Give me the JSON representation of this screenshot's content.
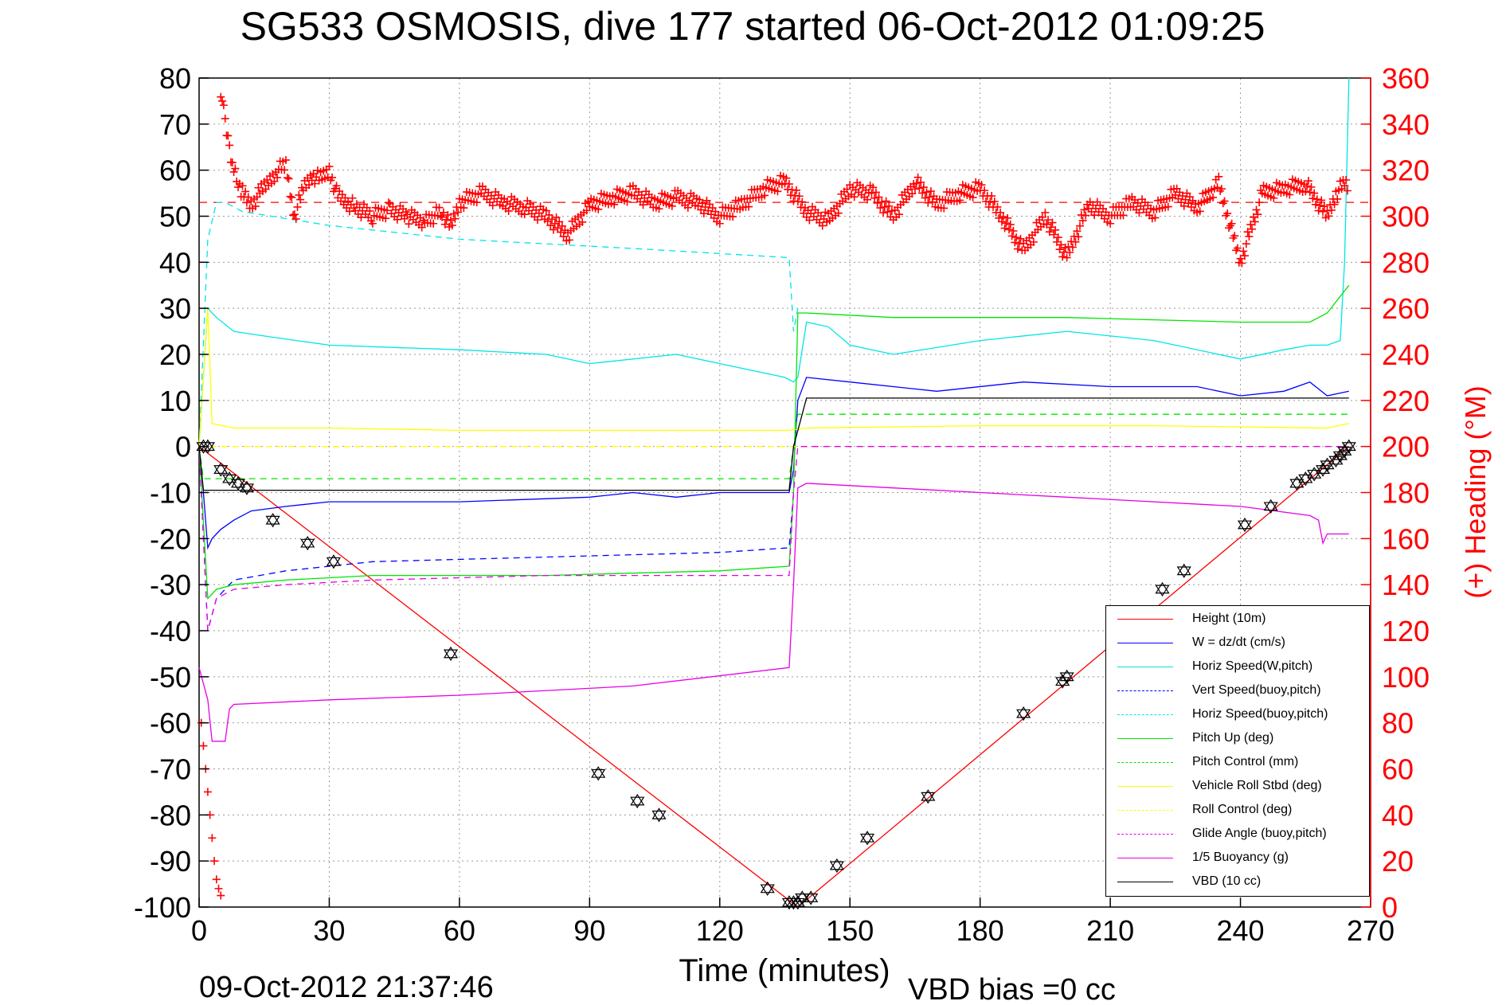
{
  "chart_data": {
    "type": "line",
    "title": "SG533 OSMOSIS, dive 177 started 06-Oct-2012 01:09:25",
    "xlabel": "Time (minutes)",
    "ylabel_right": "(+) Heading (°M)",
    "footer_left": "09-Oct-2012 21:37:46",
    "footer_right": "VBD bias =0 cc",
    "xlim": [
      0,
      270
    ],
    "ylim": [
      -100,
      80
    ],
    "ylim_right": [
      0,
      360
    ],
    "xticks": [
      0,
      30,
      60,
      90,
      120,
      150,
      180,
      210,
      240,
      270
    ],
    "yticks": [
      80,
      70,
      60,
      50,
      40,
      30,
      20,
      10,
      0,
      -10,
      -20,
      -30,
      -40,
      -50,
      -60,
      -70,
      -80,
      -90,
      -100
    ],
    "yticks_right": [
      360,
      340,
      320,
      300,
      280,
      260,
      240,
      220,
      200,
      180,
      160,
      140,
      120,
      100,
      80,
      60,
      40,
      20,
      0
    ],
    "grid": true,
    "legend_position": "bottom-right",
    "heading_mean": 306,
    "series": [
      {
        "name": "Height (10m)",
        "color": "#ff0000",
        "style": "solid",
        "axis": "left",
        "x": [
          0,
          138,
          265
        ],
        "y": [
          0,
          -100,
          0
        ]
      },
      {
        "name": "W = dz/dt (cm/s)",
        "color": "#0000ff",
        "style": "solid",
        "axis": "left",
        "x": [
          0,
          1,
          2,
          3,
          5,
          8,
          12,
          20,
          30,
          60,
          90,
          100,
          110,
          120,
          130,
          136,
          137,
          138,
          140,
          150,
          170,
          190,
          210,
          230,
          240,
          250,
          256,
          260,
          265
        ],
        "y": [
          0,
          -10,
          -22,
          -20,
          -18,
          -16,
          -14,
          -13,
          -12,
          -12,
          -11,
          -10,
          -11,
          -10,
          -10,
          -10,
          -5,
          10,
          15,
          14,
          12,
          14,
          13,
          13,
          11,
          12,
          14,
          11,
          12
        ]
      },
      {
        "name": "Horiz Speed(W,pitch)",
        "color": "#00e5e5",
        "style": "solid",
        "axis": "left",
        "x": [
          0,
          2,
          4,
          8,
          15,
          30,
          60,
          80,
          90,
          110,
          120,
          130,
          135,
          137,
          138,
          140,
          145,
          150,
          160,
          180,
          200,
          220,
          240,
          250,
          256,
          260,
          263,
          264,
          265
        ],
        "y": [
          0,
          30,
          28,
          25,
          24,
          22,
          21,
          20,
          18,
          20,
          18,
          16,
          15,
          14,
          15,
          27,
          26,
          22,
          20,
          23,
          25,
          23,
          19,
          21,
          22,
          22,
          23,
          40,
          80
        ]
      },
      {
        "name": "Vert Speed(buoy,pitch)",
        "color": "#0000ff",
        "style": "dashed",
        "axis": "left",
        "x": [
          0,
          2,
          4,
          8,
          20,
          40,
          80,
          120,
          136,
          137
        ],
        "y": [
          0,
          -40,
          -33,
          -29,
          -27,
          -25,
          -24,
          -23,
          -22,
          -10
        ]
      },
      {
        "name": "Horiz Speed(buoy,pitch)",
        "color": "#00e5e5",
        "style": "dashed",
        "axis": "left",
        "x": [
          0,
          2,
          4,
          6,
          10,
          30,
          60,
          100,
          136,
          137,
          138
        ],
        "y": [
          0,
          45,
          53,
          53,
          51,
          48,
          45,
          43,
          41,
          25,
          30
        ]
      },
      {
        "name": "Pitch Up (deg)",
        "color": "#00e600",
        "style": "solid",
        "axis": "left",
        "x": [
          0,
          2,
          4,
          8,
          20,
          40,
          80,
          120,
          136,
          137,
          138,
          140,
          160,
          200,
          240,
          256,
          260,
          265
        ],
        "y": [
          0,
          -33,
          -31,
          -30,
          -29,
          -28,
          -28,
          -27,
          -26,
          -10,
          29,
          29,
          28,
          28,
          27,
          27,
          29,
          35
        ]
      },
      {
        "name": "Pitch Control (mm)",
        "color": "#00e600",
        "style": "dashed",
        "axis": "left",
        "x": [
          0,
          1,
          2,
          136,
          137,
          138,
          140,
          265
        ],
        "y": [
          0,
          -7,
          -7,
          -7,
          0,
          7,
          7,
          7
        ]
      },
      {
        "name": "Vehicle Roll Stbd (deg)",
        "color": "#ffff00",
        "style": "solid",
        "axis": "left",
        "x": [
          0,
          2,
          3,
          8,
          30,
          60,
          100,
          136,
          140,
          180,
          220,
          260,
          265
        ],
        "y": [
          0,
          30,
          5,
          4,
          4,
          3.5,
          3.5,
          3.5,
          4,
          4.5,
          4.5,
          4,
          5
        ]
      },
      {
        "name": "Roll Control (deg)",
        "color": "#ffff00",
        "style": "dashed",
        "axis": "left",
        "x": [
          0,
          136,
          265
        ],
        "y": [
          0,
          0,
          0
        ]
      },
      {
        "name": "Glide Angle (buoy,pitch)",
        "color": "#e600e6",
        "style": "dashed",
        "axis": "left",
        "x": [
          0,
          2,
          4,
          8,
          20,
          40,
          80,
          120,
          136,
          137,
          138,
          265
        ],
        "y": [
          0,
          -40,
          -33,
          -31,
          -30,
          -29,
          -28,
          -28,
          -28,
          -10,
          0,
          0
        ]
      },
      {
        "name": "1/5 Buoyancy (g)",
        "color": "#e600e6",
        "style": "solid",
        "axis": "left",
        "x": [
          0,
          2,
          3,
          6,
          7,
          8,
          30,
          60,
          100,
          136,
          137,
          138,
          140,
          160,
          200,
          240,
          256,
          258,
          259,
          260,
          265
        ],
        "y": [
          -48,
          -55,
          -64,
          -64,
          -57,
          -56,
          -55,
          -54,
          -52,
          -48,
          -30,
          -9,
          -8,
          -9,
          -11,
          -13,
          -15,
          -16,
          -21,
          -19,
          -19
        ]
      },
      {
        "name": "VBD (10 cc)",
        "color": "#000000",
        "style": "solid",
        "axis": "left",
        "x": [
          0,
          1,
          2,
          136,
          137,
          140,
          265
        ],
        "y": [
          0,
          -9.5,
          -9.5,
          -9.5,
          0,
          10.5,
          10.5
        ]
      }
    ],
    "heading_points": {
      "name": "Heading (+)",
      "color": "#ff0000",
      "x": [
        5,
        6,
        7,
        8,
        9,
        10,
        12,
        14,
        16,
        18,
        20,
        22,
        24,
        26,
        28,
        30,
        32,
        36,
        40,
        44,
        48,
        52,
        56,
        58,
        60,
        65,
        70,
        75,
        80,
        85,
        90,
        95,
        100,
        105,
        110,
        115,
        120,
        125,
        130,
        135,
        140,
        145,
        150,
        155,
        160,
        165,
        170,
        175,
        180,
        185,
        190,
        195,
        200,
        205,
        210,
        215,
        220,
        225,
        230,
        235,
        240,
        245,
        250,
        255,
        260,
        262,
        264,
        265
      ],
      "y": [
        355,
        340,
        330,
        320,
        315,
        310,
        305,
        310,
        315,
        320,
        322,
        300,
        312,
        318,
        316,
        320,
        308,
        304,
        300,
        303,
        300,
        298,
        302,
        295,
        306,
        310,
        306,
        304,
        300,
        292,
        305,
        308,
        310,
        306,
        308,
        306,
        300,
        305,
        312,
        315,
        302,
        298,
        312,
        310,
        300,
        315,
        305,
        310,
        312,
        300,
        285,
        300,
        282,
        305,
        300,
        306,
        302,
        310,
        304,
        314,
        280,
        310,
        312,
        314,
        300,
        310,
        314,
        312
      ]
    },
    "heading_points_descent": {
      "x": [
        0.5,
        1,
        1.5,
        2,
        2.5,
        3,
        3.5,
        4,
        4.5,
        5
      ],
      "y": [
        80,
        70,
        60,
        50,
        40,
        30,
        20,
        12,
        8,
        5
      ]
    },
    "marker_points": {
      "x": [
        1,
        2,
        5,
        7,
        9,
        11,
        17,
        25,
        31,
        58,
        92,
        101,
        106,
        131,
        136,
        137,
        138,
        139,
        141,
        147,
        154,
        168,
        190,
        199,
        200,
        222,
        227,
        241,
        247,
        253,
        255,
        257,
        259,
        260,
        262,
        263,
        264,
        265
      ],
      "y": [
        0,
        0,
        -5,
        -7,
        -8,
        -9,
        -16,
        -21,
        -25,
        -45,
        -71,
        -77,
        -80,
        -96,
        -99,
        -99,
        -99,
        -98,
        -98,
        -91,
        -85,
        -76,
        -58,
        -51,
        -50,
        -31,
        -27,
        -17,
        -13,
        -8,
        -7,
        -6,
        -5,
        -4,
        -3,
        -2,
        -1,
        0
      ]
    }
  }
}
